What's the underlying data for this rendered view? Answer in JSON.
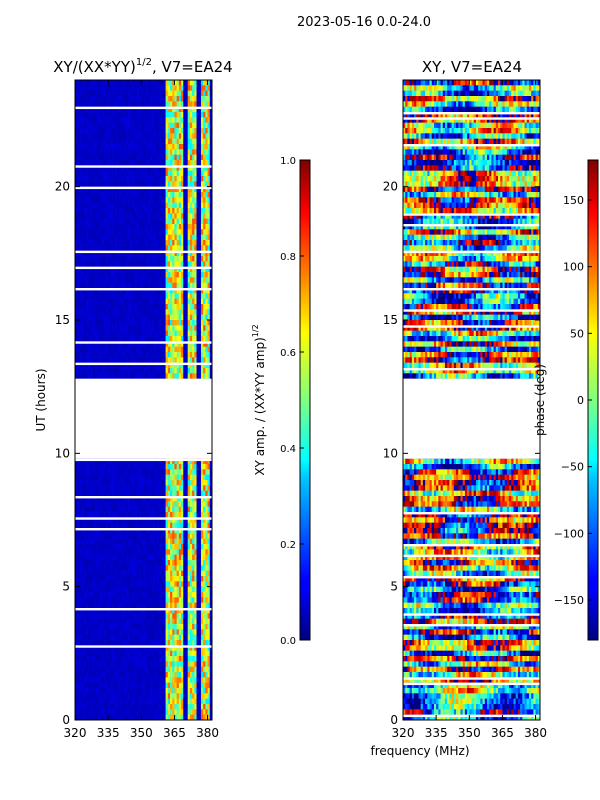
{
  "suptitle": "2023-05-16 0.0-24.0",
  "shared_xlabel": "frequency (MHz)",
  "colors": {
    "data_gap": "#ffffff",
    "frame": "#000000",
    "colormap": "jet"
  },
  "chart_data": [
    {
      "type": "heatmap",
      "title": "XY/(XX*YY)",
      "title_superscript": "1/2",
      "title_suffix": ", V7=EA24",
      "xlabel": "",
      "ylabel": "UT (hours)",
      "xlim": [
        320,
        382
      ],
      "ylim": [
        0,
        24
      ],
      "xticks": [
        320,
        335,
        350,
        365,
        380
      ],
      "yticks": [
        0,
        5,
        10,
        15,
        20
      ],
      "gap_ut_hours": [
        9.8,
        12.8
      ],
      "bright_channels_mhz": [
        362,
        364,
        366,
        368,
        372,
        374,
        378,
        380
      ],
      "background_value": 0.05,
      "colorbar": {
        "label": "XY amp. / (XX*YY amp)",
        "label_superscript": "1/2",
        "range": [
          0.0,
          1.0
        ],
        "ticks": [
          "0.0",
          "0.2",
          "0.4",
          "0.6",
          "0.8",
          "1.0"
        ]
      }
    },
    {
      "type": "heatmap",
      "title": "XY, V7=EA24",
      "xlabel": "",
      "ylabel": "",
      "xlim": [
        320,
        382
      ],
      "ylim": [
        0,
        24
      ],
      "xticks": [
        320,
        335,
        350,
        365,
        380
      ],
      "yticks": [
        0,
        5,
        10,
        15,
        20
      ],
      "gap_ut_hours": [
        9.8,
        12.8
      ],
      "colorbar": {
        "label": "phase (deg)",
        "range": [
          -180,
          180
        ],
        "ticks": [
          "−150",
          "−100",
          "−50",
          "0",
          "50",
          "100",
          "150"
        ]
      }
    }
  ]
}
